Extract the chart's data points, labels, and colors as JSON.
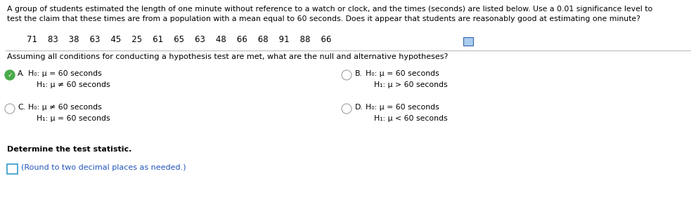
{
  "background_color": "#ffffff",
  "intro_line1": "A group of students estimated the length of one minute without reference to a watch or clock, and the times (seconds) are listed below. Use a 0.01 significance level to",
  "intro_line2": "test the claim that these times are from a population with a mean equal to 60 seconds. Does it appear that students are reasonably good at estimating one minute?",
  "data_values": "71    83    38    63    45    25    61    65    63    48    66    68    91    88    66",
  "section2_text": "Assuming all conditions for conducting a hypothesis test are met, what are the null and alternative hypotheses?",
  "option_A_label": "A.",
  "option_A_H0": "H₀: μ = 60 seconds",
  "option_A_H1": "H₁: μ ≠ 60 seconds",
  "option_B_label": "B.",
  "option_B_H0": "H₀: μ = 60 seconds",
  "option_B_H1": "H₁: μ > 60 seconds",
  "option_C_label": "C.",
  "option_C_H0": "H₀: μ ≠ 60 seconds",
  "option_C_H1": "H₁: μ = 60 seconds",
  "option_D_label": "D.",
  "option_D_H0": "H₀: μ = 60 seconds",
  "option_D_H1": "H₁: μ < 60 seconds",
  "determine_text": "Determine the test statistic.",
  "round_text": "(Round to two decimal places as needed.)",
  "font_size_intro": 7.8,
  "font_size_data": 8.5,
  "font_size_section2": 8.0,
  "font_size_options": 7.8,
  "font_size_determine": 8.0,
  "font_size_round": 8.0,
  "text_color": "#000000",
  "blue_text_color": "#2255bb",
  "divider_color": "#bbbbbb",
  "radio_color": "#aaaaaa",
  "green_fill": "#4aaa4a",
  "check_color": "#ffffff"
}
